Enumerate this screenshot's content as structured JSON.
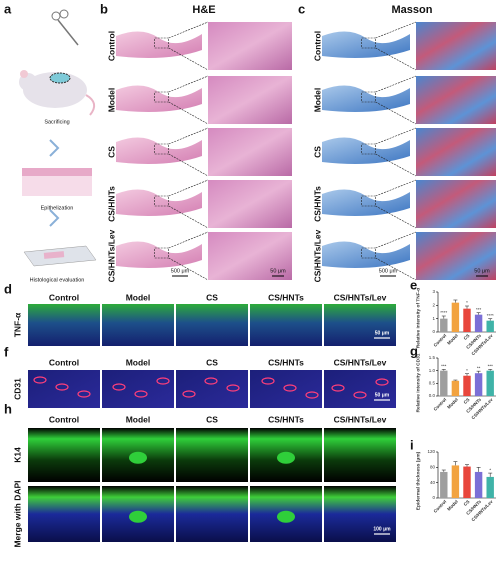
{
  "panels": {
    "a": {
      "label": "a",
      "steps": [
        "Sacrificing",
        "Epithelization",
        "Histological evaluation"
      ]
    },
    "b": {
      "label": "b",
      "title": "H&E",
      "rows": [
        "Control",
        "Model",
        "CS",
        "CS/HNTs",
        "CS/HNTs/Lev"
      ],
      "scale_bars": [
        "500 μm",
        "50 μm"
      ]
    },
    "c": {
      "label": "c",
      "title": "Masson",
      "rows": [
        "Control",
        "Model",
        "CS",
        "CS/HNTs",
        "CS/HNTs/Lev"
      ],
      "scale_bars": [
        "500 μm",
        "50 μm"
      ]
    },
    "d": {
      "label": "d",
      "columns": [
        "Control",
        "Model",
        "CS",
        "CS/HNTs",
        "CS/HNTs/Lev"
      ],
      "rows": [
        "TNF-α"
      ],
      "scale_bar": "50 μm"
    },
    "f": {
      "label": "f",
      "columns": [
        "Control",
        "Model",
        "CS",
        "CS/HNTs",
        "CS/HNTs/Lev"
      ],
      "rows": [
        "CD31"
      ],
      "scale_bar": "50 μm"
    },
    "h": {
      "label": "h",
      "columns": [
        "Control",
        "Model",
        "CS",
        "CS/HNTs",
        "CS/HNTs/Lev"
      ],
      "rows": [
        "K14",
        "Merge with DAPI"
      ],
      "scale_bar": "100 μm"
    }
  },
  "chart_data": [
    {
      "type": "bar",
      "label": "e",
      "y_label": "Relative intensity of TNF-α",
      "categories": [
        "Control",
        "Model",
        "CS",
        "CS/HNTs",
        "CS/HNTs/Lev"
      ],
      "values": [
        1.0,
        2.2,
        1.75,
        1.3,
        0.85
      ],
      "errors": [
        0.2,
        0.2,
        0.2,
        0.15,
        0.15
      ],
      "colors": [
        "#9e9e9e",
        "#f2a340",
        "#e8463c",
        "#7b6fd6",
        "#3fb3a8"
      ],
      "ylim": [
        0,
        3
      ],
      "yticks": [
        0,
        1,
        2,
        3
      ],
      "annotations": [
        {
          "index": 0,
          "text": "****"
        },
        {
          "index": 2,
          "text": "*"
        },
        {
          "index": 3,
          "text": "***"
        },
        {
          "index": 4,
          "text": "****"
        }
      ]
    },
    {
      "type": "bar",
      "label": "g",
      "y_label": "Relative intensity of CD31",
      "categories": [
        "Control",
        "Model",
        "CS",
        "CS/HNTs",
        "CS/HNTs/Lev"
      ],
      "values": [
        1.0,
        0.6,
        0.8,
        0.9,
        1.0
      ],
      "errors": [
        0.05,
        0.03,
        0.08,
        0.08,
        0.05
      ],
      "colors": [
        "#9e9e9e",
        "#f2a340",
        "#e8463c",
        "#7b6fd6",
        "#3fb3a8"
      ],
      "ylim": [
        0,
        1.5
      ],
      "yticks": [
        {
          "value": 0,
          "label": "0.0"
        },
        {
          "value": 0.5,
          "label": "0.5"
        },
        {
          "value": 1,
          "label": "1.0"
        },
        {
          "value": 1.5,
          "label": "1.5"
        }
      ],
      "annotations": [
        {
          "index": 0,
          "text": "***"
        },
        {
          "index": 2,
          "text": "*"
        },
        {
          "index": 3,
          "text": "**"
        },
        {
          "index": 4,
          "text": "***"
        }
      ]
    },
    {
      "type": "bar",
      "label": "i",
      "y_label": "Epidermal thickness (μm)",
      "categories": [
        "Control",
        "Model",
        "CS",
        "CS/HNTs",
        "CS/HNTs/Lev"
      ],
      "values": [
        68,
        85,
        82,
        68,
        55
      ],
      "errors": [
        5,
        10,
        5,
        12,
        10
      ],
      "colors": [
        "#9e9e9e",
        "#f2a340",
        "#e8463c",
        "#7b6fd6",
        "#3fb3a8"
      ],
      "ylim": [
        0,
        120
      ],
      "yticks": [
        0,
        40,
        80,
        120
      ],
      "annotations": [
        {
          "index": 4,
          "text": "*"
        }
      ]
    }
  ]
}
